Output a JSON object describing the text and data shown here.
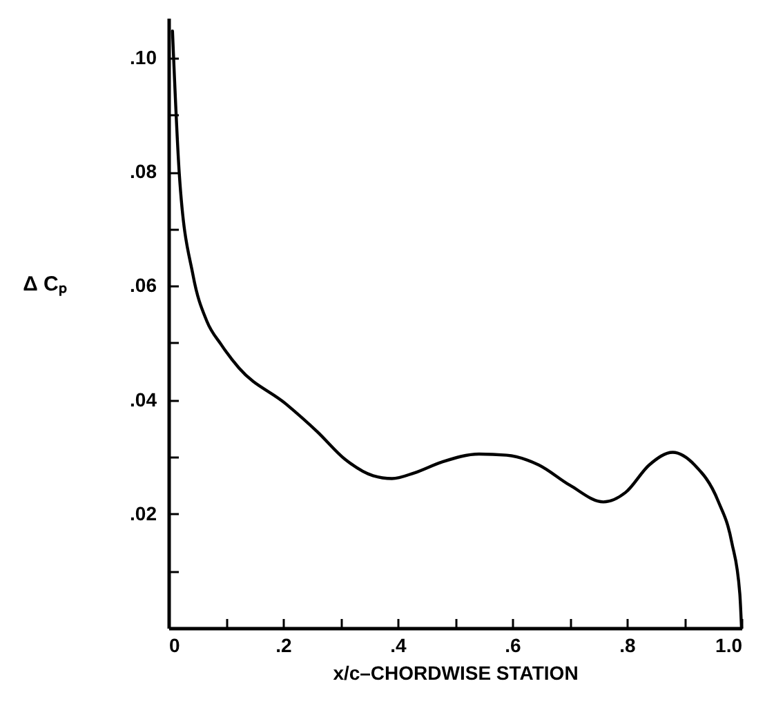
{
  "chart_data": {
    "type": "line",
    "xlabel": "x/c–CHORDWISE STATION",
    "ylabel": "Δ Cₚ",
    "xlim": [
      0,
      1.0
    ],
    "ylim": [
      0,
      0.107
    ],
    "xticks": [
      0,
      {
        "value": 0.1,
        "label": null
      },
      {
        "value": 0.2,
        "label": ".2"
      },
      {
        "value": 0.3,
        "label": null
      },
      {
        "value": 0.4,
        "label": ".4"
      },
      {
        "value": 0.5,
        "label": null
      },
      {
        "value": 0.6,
        "label": ".6"
      },
      {
        "value": 0.7,
        "label": null
      },
      {
        "value": 0.8,
        "label": ".8"
      },
      {
        "value": 0.9,
        "label": null
      },
      {
        "value": 1.0,
        "label": "1.0"
      }
    ],
    "yticks": [
      {
        "value": 0.01,
        "label": null
      },
      {
        "value": 0.02,
        "label": ".02"
      },
      {
        "value": 0.03,
        "label": null
      },
      {
        "value": 0.04,
        "label": ".04"
      },
      {
        "value": 0.05,
        "label": null
      },
      {
        "value": 0.06,
        "label": ".06"
      },
      {
        "value": 0.07,
        "label": null
      },
      {
        "value": 0.08,
        "label": ".08"
      },
      {
        "value": 0.09,
        "label": null
      },
      {
        "value": 0.1,
        "label": ".10"
      }
    ],
    "x": [
      0.007,
      0.019,
      0.043,
      0.067,
      0.092,
      0.123,
      0.205,
      0.26,
      0.308,
      0.357,
      0.39,
      0.429,
      0.477,
      0.542,
      0.59,
      0.646,
      0.701,
      0.759,
      0.798,
      0.839,
      0.88,
      0.918,
      0.959,
      0.983,
      0.997,
      1.0
    ],
    "series": [
      {
        "color": "#000000",
        "values": [
          0.1047,
          0.0795,
          0.0618,
          0.0538,
          0.0497,
          0.0456,
          0.0393,
          0.0344,
          0.0296,
          0.0267,
          0.0262,
          0.0272,
          0.0291,
          0.0305,
          0.0303,
          0.0286,
          0.025,
          0.0221,
          0.0238,
          0.0286,
          0.0308,
          0.0286,
          0.0223,
          0.015,
          0.006,
          0
        ]
      }
    ]
  }
}
